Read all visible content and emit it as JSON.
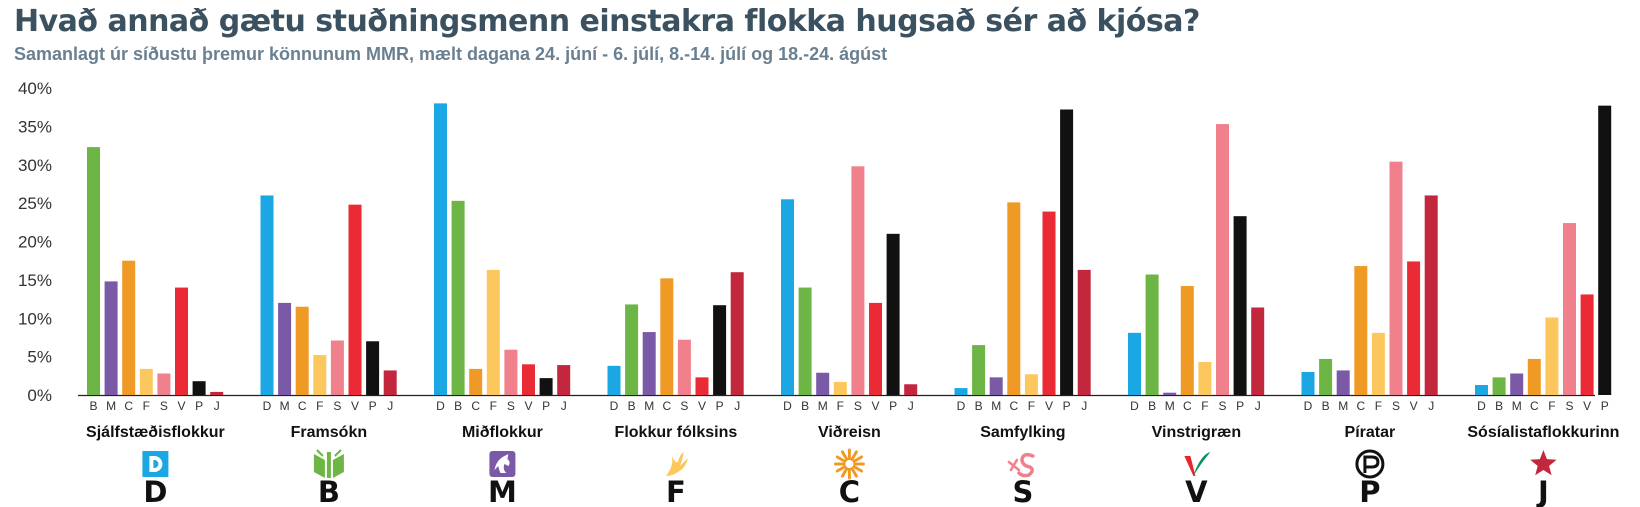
{
  "header": {
    "title": "Hvað annað gætu stuðningsmenn einstakra flokka hugsað sér að kjósa?",
    "subtitle": "Samanlagt úr síðustu þremur könnunum MMR, mælt dagana 24. júní - 6. júlí, 8.-14. júlí og 18.-24. ágúst"
  },
  "colors": {
    "D": "#1aa7e4",
    "B": "#6db544",
    "M": "#7a5aa6",
    "C": "#f09a26",
    "F": "#fcc85e",
    "S": "#f0808c",
    "V": "#ea2a34",
    "P": "#111111",
    "J": "#c2273e"
  },
  "chart_data": {
    "type": "bar",
    "ylim": [
      0,
      40
    ],
    "yticks": [
      "0%",
      "5%",
      "10%",
      "15%",
      "20%",
      "25%",
      "30%",
      "35%",
      "40%"
    ],
    "grid": false,
    "groups": [
      {
        "name": "Sjálfstæðisflokkur",
        "letter": "D",
        "icon": "d-logo-icon",
        "categories": [
          "B",
          "M",
          "C",
          "F",
          "S",
          "V",
          "P",
          "J"
        ],
        "values": [
          32.3,
          14.8,
          17.5,
          3.4,
          2.8,
          14.0,
          1.8,
          0.4
        ]
      },
      {
        "name": "Framsókn",
        "letter": "B",
        "icon": "book-logo-icon",
        "categories": [
          "D",
          "M",
          "C",
          "F",
          "S",
          "V",
          "P",
          "J"
        ],
        "values": [
          26.0,
          12.0,
          11.5,
          5.2,
          7.1,
          24.8,
          7.0,
          3.2
        ]
      },
      {
        "name": "Miðflokkur",
        "letter": "M",
        "icon": "horse-logo-icon",
        "categories": [
          "D",
          "B",
          "C",
          "F",
          "S",
          "V",
          "P",
          "J"
        ],
        "values": [
          38.0,
          25.3,
          3.4,
          16.3,
          5.9,
          4.0,
          2.2,
          3.9
        ]
      },
      {
        "name": "Flokkur fólksins",
        "letter": "F",
        "icon": "hand-logo-icon",
        "categories": [
          "D",
          "B",
          "M",
          "C",
          "S",
          "V",
          "P",
          "J"
        ],
        "values": [
          3.8,
          11.8,
          8.2,
          15.2,
          7.2,
          2.3,
          11.7,
          16.0
        ]
      },
      {
        "name": "Viðreisn",
        "letter": "C",
        "icon": "sun-logo-icon",
        "categories": [
          "D",
          "B",
          "M",
          "F",
          "S",
          "V",
          "P",
          "J"
        ],
        "values": [
          25.5,
          14.0,
          2.9,
          1.7,
          29.8,
          12.0,
          21.0,
          1.4
        ]
      },
      {
        "name": "Samfylking",
        "letter": "S",
        "icon": "rose-logo-icon",
        "categories": [
          "D",
          "B",
          "M",
          "C",
          "F",
          "V",
          "P",
          "J"
        ],
        "values": [
          0.9,
          6.5,
          2.3,
          25.1,
          2.7,
          23.9,
          37.2,
          16.3
        ]
      },
      {
        "name": "Vinstrigræn",
        "letter": "V",
        "icon": "v-logo-icon",
        "categories": [
          "D",
          "B",
          "M",
          "C",
          "F",
          "S",
          "P",
          "J"
        ],
        "values": [
          8.1,
          15.7,
          0.3,
          14.2,
          4.3,
          35.3,
          23.3,
          11.4
        ]
      },
      {
        "name": "Píratar",
        "letter": "P",
        "icon": "pirate-logo-icon",
        "categories": [
          "D",
          "B",
          "M",
          "C",
          "F",
          "S",
          "V",
          "J"
        ],
        "values": [
          3.0,
          4.7,
          3.2,
          16.8,
          8.1,
          30.4,
          17.4,
          26.0
        ]
      },
      {
        "name": "Sósíalistaflokkurinn",
        "letter": "J",
        "icon": "star-logo-icon",
        "categories": [
          "D",
          "B",
          "M",
          "C",
          "F",
          "S",
          "V",
          "P"
        ],
        "values": [
          1.3,
          2.3,
          2.8,
          4.7,
          10.1,
          22.4,
          13.1,
          37.7
        ]
      }
    ]
  }
}
